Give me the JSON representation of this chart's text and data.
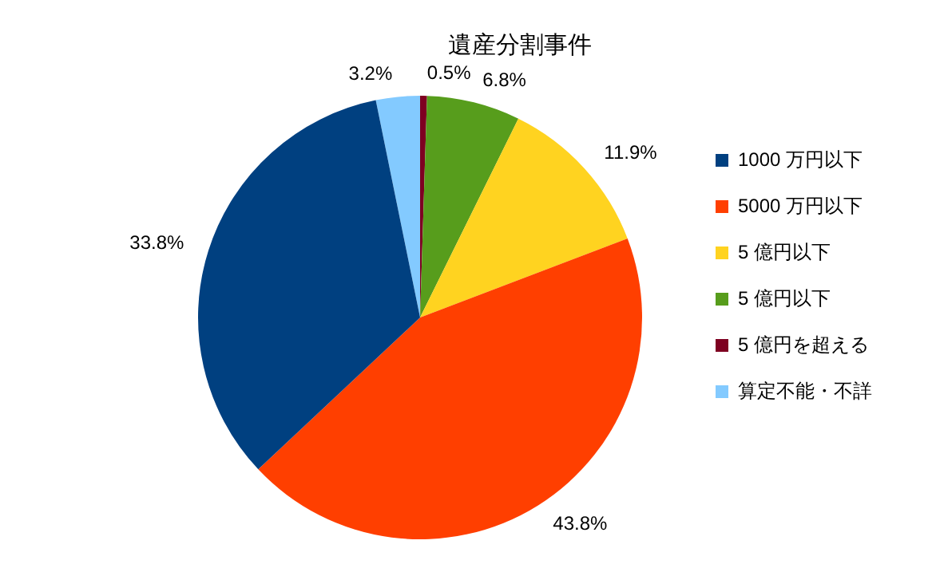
{
  "chart_data": {
    "type": "pie",
    "title": "遺産分割事件",
    "categories": [
      "1000 万円以下",
      "5000 万円以下",
      "5 億円以下",
      "5 億円以下",
      "5 億円を超える",
      "算定不能・不詳"
    ],
    "values": [
      33.8,
      43.8,
      11.9,
      6.8,
      0.5,
      3.2
    ],
    "colors": [
      "#004080",
      "#ff3f00",
      "#ffd320",
      "#579d1c",
      "#7e0021",
      "#83caff"
    ],
    "value_labels": [
      "33.8%",
      "43.8%",
      "11.9%",
      "6.8%",
      "0.5%",
      "3.2%"
    ],
    "legend": "right"
  }
}
